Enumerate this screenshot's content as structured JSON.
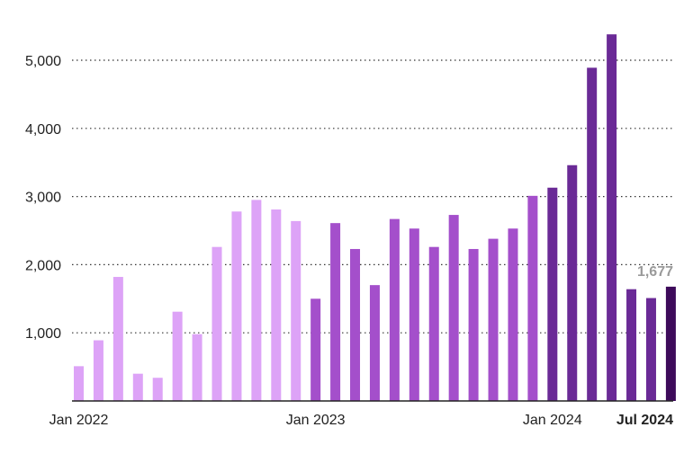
{
  "chart_data": {
    "type": "bar",
    "title": "",
    "xlabel": "",
    "ylabel": "",
    "ylim": [
      0,
      5500
    ],
    "yticks": [
      {
        "value": 1000,
        "label": "1,000"
      },
      {
        "value": 2000,
        "label": "2,000"
      },
      {
        "value": 3000,
        "label": "3,000"
      },
      {
        "value": 4000,
        "label": "4,000"
      },
      {
        "value": 5000,
        "label": "5,000"
      }
    ],
    "grid": true,
    "categories": [
      "Jan 2022",
      "Feb 2022",
      "Mar 2022",
      "Apr 2022",
      "May 2022",
      "Jun 2022",
      "Jul 2022",
      "Aug 2022",
      "Sep 2022",
      "Oct 2022",
      "Nov 2022",
      "Dec 2022",
      "Jan 2023",
      "Feb 2023",
      "Mar 2023",
      "Apr 2023",
      "May 2023",
      "Jun 2023",
      "Jul 2023",
      "Aug 2023",
      "Sep 2023",
      "Oct 2023",
      "Nov 2023",
      "Dec 2023",
      "Jan 2024",
      "Feb 2024",
      "Mar 2024",
      "Apr 2024",
      "May 2024",
      "Jun 2024",
      "Jul 2024"
    ],
    "values": [
      510,
      890,
      1820,
      400,
      340,
      1310,
      980,
      2260,
      2780,
      2950,
      2810,
      2640,
      1500,
      2610,
      2230,
      1700,
      2670,
      2530,
      2260,
      2730,
      2230,
      2380,
      2530,
      3010,
      3130,
      3460,
      4890,
      5380,
      1640,
      1510,
      1677
    ],
    "bar_colors": [
      "#dda3f7",
      "#dda3f7",
      "#dda3f7",
      "#dda3f7",
      "#dda3f7",
      "#dda3f7",
      "#dda3f7",
      "#dda3f7",
      "#dda3f7",
      "#dda3f7",
      "#dda3f7",
      "#dda3f7",
      "#a44fcb",
      "#a44fcb",
      "#a44fcb",
      "#a44fcb",
      "#a44fcb",
      "#a44fcb",
      "#a44fcb",
      "#a44fcb",
      "#a44fcb",
      "#a44fcb",
      "#a44fcb",
      "#a44fcb",
      "#6a2a96",
      "#6a2a96",
      "#6a2a96",
      "#6a2a96",
      "#6a2a96",
      "#6a2a96",
      "#3d0a5a"
    ],
    "x_tick_labels": [
      {
        "index": 0,
        "label": "Jan 2022",
        "bold": false
      },
      {
        "index": 12,
        "label": "Jan 2023",
        "bold": false
      },
      {
        "index": 24,
        "label": "Jan 2024",
        "bold": false
      },
      {
        "index": 30,
        "label": "Jul 2024",
        "bold": true
      }
    ],
    "annotations": [
      {
        "index": 30,
        "label": "1,677"
      }
    ]
  }
}
